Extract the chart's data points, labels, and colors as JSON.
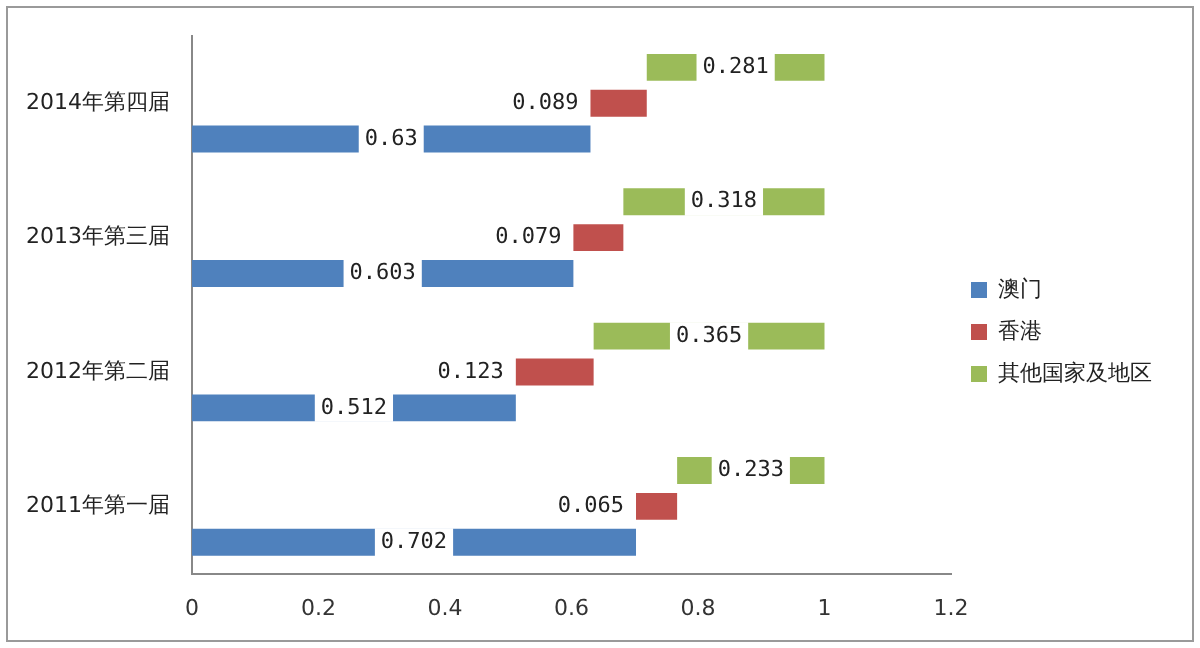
{
  "chart_data": {
    "type": "bar",
    "orientation": "horizontal",
    "categories": [
      "2014年第四届",
      "2013年第三届",
      "2012年第二届",
      "2011年第一届"
    ],
    "series": [
      {
        "name": "澳门",
        "color": "#4f81bd",
        "values": [
          0.63,
          0.603,
          0.512,
          0.702
        ]
      },
      {
        "name": "香港",
        "color": "#c0504d",
        "values": [
          0.089,
          0.079,
          0.123,
          0.065
        ],
        "base": [
          0.63,
          0.603,
          0.512,
          0.702
        ]
      },
      {
        "name": "其他国家及地区",
        "color": "#9bbb59",
        "values": [
          0.281,
          0.318,
          0.365,
          0.233
        ],
        "base": [
          0.719,
          0.682,
          0.635,
          0.767
        ]
      }
    ],
    "xlim": [
      0,
      1.2
    ],
    "xticks": [
      0,
      0.2,
      0.4,
      0.6,
      0.8,
      1,
      1.2
    ],
    "grid": false,
    "legend": "right",
    "data_labels": true
  }
}
